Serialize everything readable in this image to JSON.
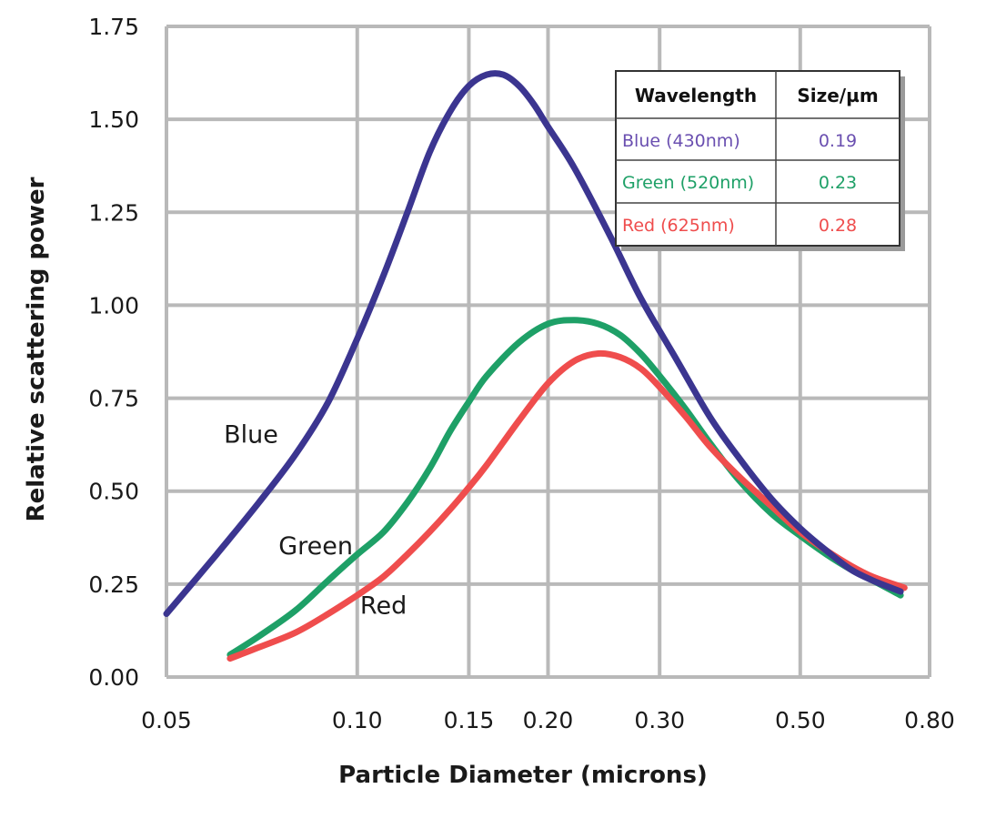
{
  "chart_data": {
    "type": "line",
    "title": "",
    "xlabel": "Particle Diameter (microns)",
    "ylabel": "Relative scattering power",
    "x_scale": "log",
    "xlim": [
      0.05,
      0.8
    ],
    "ylim": [
      0,
      1.75
    ],
    "grid": true,
    "x_ticks": [
      {
        "value": 0.05,
        "label": "0.05"
      },
      {
        "value": 0.1,
        "label": "0.10"
      },
      {
        "value": 0.15,
        "label": "0.15"
      },
      {
        "value": 0.2,
        "label": "0.20"
      },
      {
        "value": 0.3,
        "label": "0.30"
      },
      {
        "value": 0.5,
        "label": "0.50"
      },
      {
        "value": 0.8,
        "label": "0.80"
      }
    ],
    "y_ticks": [
      {
        "value": 0.0,
        "label": "0.00"
      },
      {
        "value": 0.25,
        "label": "0.25"
      },
      {
        "value": 0.5,
        "label": "0.50"
      },
      {
        "value": 0.75,
        "label": "0.75"
      },
      {
        "value": 1.0,
        "label": "1.00"
      },
      {
        "value": 1.25,
        "label": "1.25"
      },
      {
        "value": 1.5,
        "label": "1.50"
      },
      {
        "value": 1.75,
        "label": "1.75"
      }
    ],
    "series": [
      {
        "name": "Blue",
        "color": "#3b3590",
        "x": [
          0.05,
          0.06,
          0.07,
          0.08,
          0.09,
          0.1,
          0.11,
          0.12,
          0.13,
          0.14,
          0.15,
          0.16,
          0.17,
          0.18,
          0.19,
          0.2,
          0.22,
          0.25,
          0.28,
          0.32,
          0.36,
          0.4,
          0.45,
          0.5,
          0.55,
          0.6,
          0.65,
          0.72
        ],
        "values": [
          0.17,
          0.33,
          0.47,
          0.6,
          0.74,
          0.91,
          1.08,
          1.25,
          1.41,
          1.52,
          1.59,
          1.62,
          1.62,
          1.59,
          1.54,
          1.48,
          1.37,
          1.19,
          1.02,
          0.85,
          0.7,
          0.59,
          0.48,
          0.4,
          0.34,
          0.29,
          0.26,
          0.23
        ]
      },
      {
        "name": "Green",
        "color": "#1ea067",
        "x": [
          0.063,
          0.07,
          0.08,
          0.09,
          0.1,
          0.11,
          0.12,
          0.13,
          0.14,
          0.15,
          0.16,
          0.18,
          0.2,
          0.22,
          0.24,
          0.26,
          0.28,
          0.3,
          0.33,
          0.36,
          0.4,
          0.45,
          0.5,
          0.55,
          0.6,
          0.65,
          0.72
        ],
        "values": [
          0.06,
          0.11,
          0.18,
          0.26,
          0.33,
          0.39,
          0.47,
          0.56,
          0.66,
          0.74,
          0.81,
          0.9,
          0.95,
          0.96,
          0.95,
          0.92,
          0.87,
          0.81,
          0.72,
          0.63,
          0.53,
          0.44,
          0.38,
          0.33,
          0.29,
          0.26,
          0.22
        ]
      },
      {
        "name": "Red",
        "color": "#ef4d4d",
        "x": [
          0.063,
          0.07,
          0.08,
          0.09,
          0.1,
          0.11,
          0.12,
          0.13,
          0.14,
          0.15,
          0.16,
          0.18,
          0.2,
          0.22,
          0.24,
          0.26,
          0.28,
          0.3,
          0.33,
          0.36,
          0.4,
          0.45,
          0.5,
          0.55,
          0.6,
          0.65,
          0.73
        ],
        "values": [
          0.05,
          0.08,
          0.12,
          0.17,
          0.22,
          0.27,
          0.33,
          0.39,
          0.45,
          0.51,
          0.57,
          0.69,
          0.79,
          0.85,
          0.87,
          0.86,
          0.83,
          0.78,
          0.7,
          0.62,
          0.54,
          0.46,
          0.39,
          0.34,
          0.3,
          0.27,
          0.24
        ]
      }
    ],
    "annotations": [
      {
        "text": "Blue",
        "x": 0.068,
        "y": 0.63
      },
      {
        "text": "Green",
        "x": 0.086,
        "y": 0.33
      },
      {
        "text": "Red",
        "x": 0.11,
        "y": 0.17
      }
    ],
    "legend_table": {
      "placement": "top-right",
      "headers": [
        "Wavelength",
        "Size/µm"
      ],
      "rows": [
        {
          "wavelength": "Blue (430nm)",
          "size": "0.19",
          "color": "#6a4fb0"
        },
        {
          "wavelength": "Green (520nm)",
          "size": "0.23",
          "color": "#1ea067"
        },
        {
          "wavelength": "Red (625nm)",
          "size": "0.28",
          "color": "#ef4d4d"
        }
      ]
    }
  }
}
